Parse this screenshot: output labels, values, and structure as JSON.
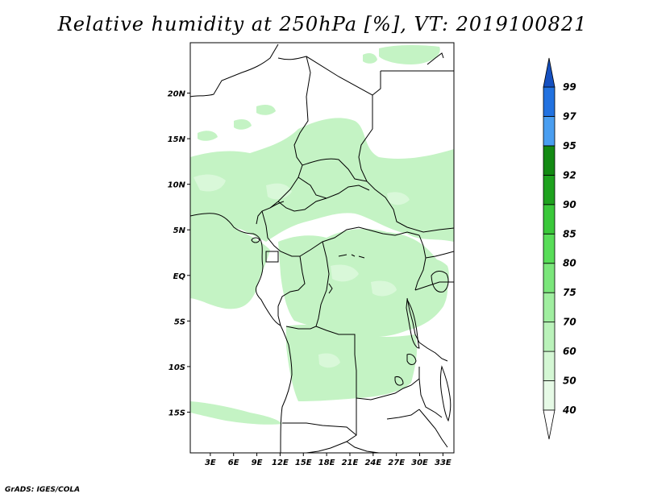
{
  "title": "Relative humidity at 250hPa [%], VT: 2019100821",
  "credit": "GrADS: IGES/COLA",
  "chart_data": {
    "type": "heatmap",
    "title": "Relative humidity at 250hPa [%], VT: 2019100821",
    "variable": "Relative humidity",
    "level": "250hPa",
    "units": "%",
    "valid_time": "2019100821",
    "lon_range": [
      0,
      34
    ],
    "lat_range": [
      -20,
      25
    ],
    "lon_ticks": [
      "3E",
      "6E",
      "9E",
      "12E",
      "15E",
      "18E",
      "21E",
      "24E",
      "27E",
      "30E",
      "33E"
    ],
    "lat_ticks": [
      "20N",
      "15N",
      "10N",
      "5N",
      "EQ",
      "5S",
      "10S",
      "15S"
    ],
    "legend": {
      "levels": [
        "40",
        "50",
        "60",
        "70",
        "75",
        "80",
        "85",
        "90",
        "92",
        "95",
        "97",
        "99"
      ],
      "colors": [
        "#ffffff",
        "#e6fae6",
        "#d4f7d4",
        "#baf2ba",
        "#a0eea0",
        "#7be67b",
        "#58dd58",
        "#3ac83a",
        "#1ea21e",
        "#138a13",
        "#4a9ef0",
        "#2272e0",
        "#1550c0"
      ]
    }
  }
}
